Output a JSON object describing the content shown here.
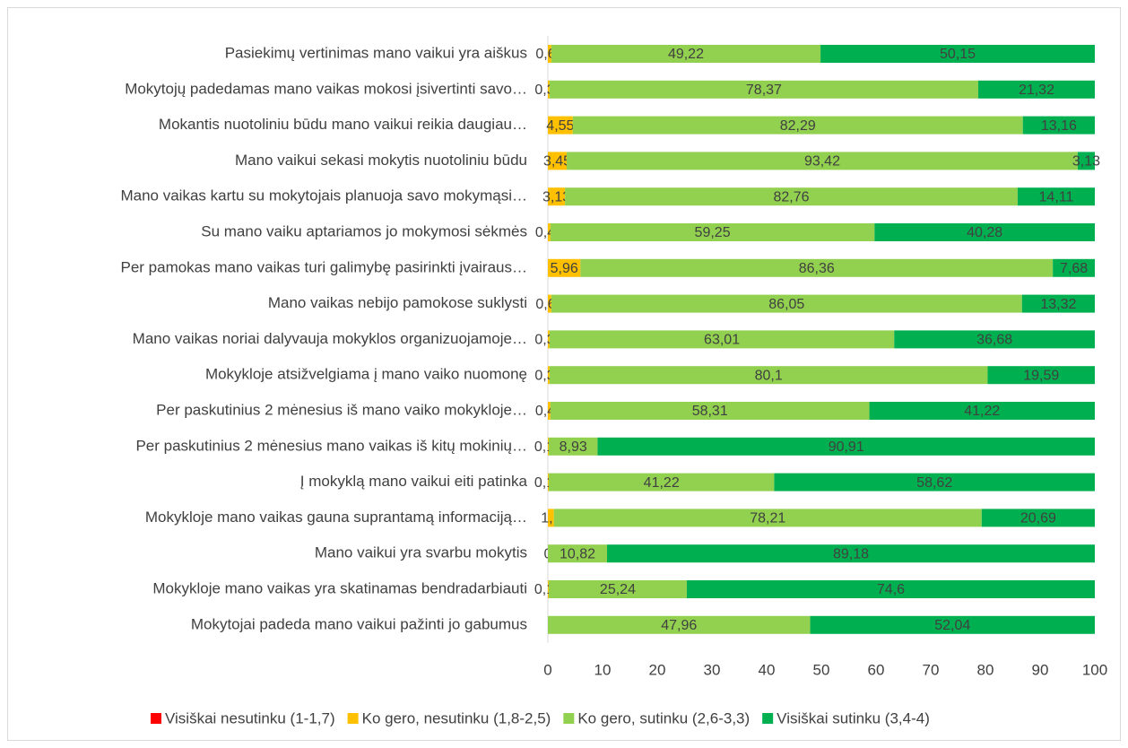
{
  "chart_data": {
    "type": "stacked-barh",
    "categories": [
      "Pasiekimų vertinimas mano vaikui yra aiškus",
      "Mokytojų padedamas mano vaikas mokosi įsivertinti savo…",
      "Mokantis nuotoliniu būdu mano vaikui reikia daugiau…",
      "Mano vaikui sekasi mokytis nuotoliniu būdu",
      "Mano vaikas kartu su mokytojais planuoja savo mokymąsi…",
      "Su mano vaiku aptariamos jo mokymosi sėkmės",
      "Per pamokas mano vaikas turi galimybę pasirinkti įvairaus…",
      "Mano vaikas nebijo pamokose suklysti",
      "Mano vaikas noriai dalyvauja mokyklos organizuojamoje…",
      "Mokykloje atsižvelgiama į mano vaiko nuomonę",
      "Per paskutinius 2 mėnesius iš mano vaiko mokykloje…",
      "Per paskutinius 2 mėnesius mano vaikas iš kitų mokinių…",
      "Į mokyklą mano vaikui eiti patinka",
      "Mokykloje mano vaikas gauna suprantamą informaciją…",
      "Mano vaikui yra svarbu mokytis",
      "Mokykloje mano vaikas yra skatinamas bendradarbiauti",
      "Mokytojai padeda mano vaikui pažinti jo gabumus"
    ],
    "series": [
      {
        "name": "Visiškai nesutinku (1-1,7)",
        "color": "#ff0000",
        "values": [
          null,
          null,
          null,
          null,
          null,
          null,
          null,
          null,
          null,
          null,
          null,
          null,
          null,
          null,
          null,
          null,
          null
        ]
      },
      {
        "name": "Ko gero, nesutinku (1,8-2,5)",
        "color": "#ffc000",
        "values": [
          0.63,
          0.31,
          4.55,
          3.45,
          3.13,
          0.47,
          5.96,
          0.63,
          0.31,
          0.31,
          0.47,
          0.16,
          0.16,
          1.1,
          0,
          0.16,
          null
        ],
        "value_labels": [
          "0,63",
          "0,31",
          "4,55",
          "3,45",
          "3,13",
          "0,47",
          "5,96",
          "0,63",
          "0,31",
          "0,31",
          "0,47",
          "0,16",
          "0,16",
          "1,1",
          "0",
          "0,16",
          null
        ]
      },
      {
        "name": "Ko gero, sutinku (2,6-3,3)",
        "color": "#92d050",
        "values": [
          49.22,
          78.37,
          82.29,
          93.42,
          82.76,
          59.25,
          86.36,
          86.05,
          63.01,
          80.1,
          58.31,
          8.93,
          41.22,
          78.21,
          10.82,
          25.24,
          47.96
        ],
        "value_labels": [
          "49,22",
          "78,37",
          "82,29",
          "93,42",
          "82,76",
          "59,25",
          "86,36",
          "86,05",
          "63,01",
          "80,1",
          "58,31",
          "8,93",
          "41,22",
          "78,21",
          "10,82",
          "25,24",
          "47,96"
        ]
      },
      {
        "name": "Visiškai sutinku (3,4-4)",
        "color": "#00b050",
        "values": [
          50.15,
          21.32,
          13.16,
          3.13,
          14.11,
          40.28,
          7.68,
          13.32,
          36.68,
          19.59,
          41.22,
          90.91,
          58.62,
          20.69,
          89.18,
          74.6,
          52.04
        ],
        "value_labels": [
          "50,15",
          "21,32",
          "13,16",
          "3,13",
          "14,11",
          "40,28",
          "7,68",
          "13,32",
          "36,68",
          "19,59",
          "41,22",
          "90,91",
          "58,62",
          "20,69",
          "89,18",
          "74,6",
          "52,04"
        ]
      }
    ],
    "xlim": [
      0,
      100
    ],
    "xticks": [
      0,
      10,
      20,
      30,
      40,
      50,
      60,
      70,
      80,
      90,
      100
    ],
    "legend": "bottom"
  }
}
